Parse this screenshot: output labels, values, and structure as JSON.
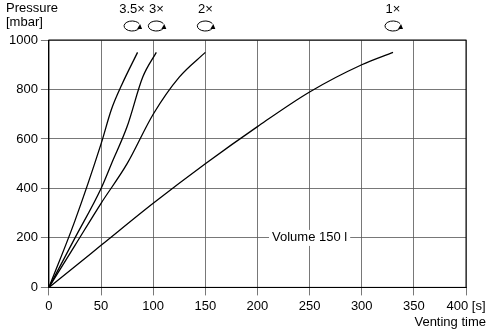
{
  "chart_data": {
    "type": "line",
    "y_label": "Pressure [mbar]",
    "x_label": "Venting time",
    "xlim": [
      0,
      400
    ],
    "xticks": [
      0,
      50,
      100,
      150,
      200,
      250,
      300,
      350,
      {
        "value": 400,
        "label": "400 [s]"
      }
    ],
    "ylim": [
      0,
      1000
    ],
    "yticks": [
      0,
      200,
      400,
      600,
      800,
      1000
    ],
    "grid": true,
    "annotations": [
      {
        "text": "Volume 150 l",
        "x": 250,
        "y": 200
      }
    ],
    "series": [
      {
        "name": "3.5×",
        "color": "#000000",
        "x": [
          0,
          25,
          50,
          60,
          70,
          85
        ],
        "values": [
          0,
          270,
          580,
          720,
          820,
          950
        ]
      },
      {
        "name": "3×",
        "color": "#000000",
        "x": [
          0,
          25,
          50,
          60,
          75,
          90,
          103
        ],
        "values": [
          0,
          200,
          400,
          500,
          650,
          850,
          950
        ]
      },
      {
        "name": "2×",
        "color": "#000000",
        "x": [
          0,
          25,
          50,
          75,
          100,
          125,
          150
        ],
        "values": [
          0,
          170,
          340,
          500,
          700,
          850,
          950
        ]
      },
      {
        "name": "1×",
        "color": "#000000",
        "x": [
          0,
          50,
          100,
          150,
          200,
          250,
          300,
          330
        ],
        "values": [
          0,
          170,
          340,
          500,
          650,
          790,
          900,
          950
        ]
      }
    ]
  }
}
